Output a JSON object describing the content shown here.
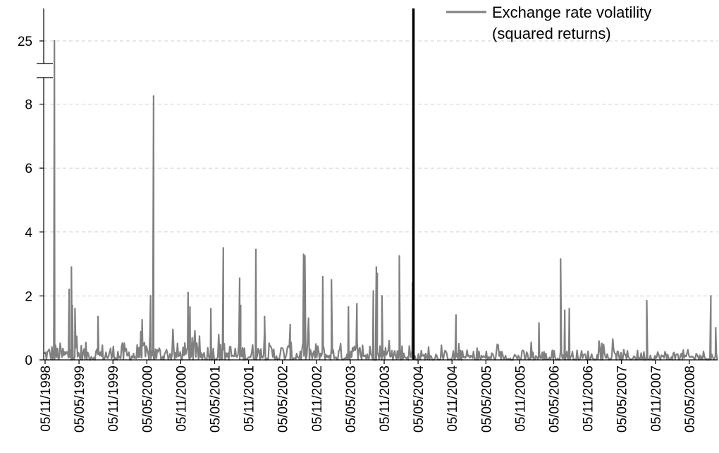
{
  "chart_data": {
    "type": "line",
    "title": "",
    "xlabel": "",
    "ylabel": "",
    "legend": {
      "position": "top-right",
      "entries": [
        "Exchange rate volatility",
        "(squared returns)"
      ]
    },
    "grid": {
      "horizontal": true,
      "style": "dashed"
    },
    "ylim": [
      0,
      10
    ],
    "axis_break": {
      "between": [
        9,
        25
      ],
      "note": "y-axis broken above 9; top tick reads 25"
    },
    "y_ticks": [
      "0",
      "2",
      "4",
      "6",
      "8",
      "25"
    ],
    "x_ticks": [
      "05/11/1998",
      "05/05/1999",
      "05/11/1999",
      "05/05/2000",
      "05/11/2000",
      "05/05/2001",
      "05/11/2001",
      "05/05/2002",
      "05/11/2002",
      "05/05/2003",
      "05/11/2003",
      "05/05/2004",
      "05/11/2004",
      "05/05/2005",
      "05/11/2005",
      "05/05/2006",
      "05/11/2006",
      "05/05/2007",
      "05/11/2007",
      "05/05/2008"
    ],
    "xlim": [
      "1998-11-05",
      "2008-08-20"
    ],
    "vertical_marker": {
      "x": "2004-03-20",
      "color": "#000000"
    },
    "series": [
      {
        "name": "Exchange rate volatility (squared returns)",
        "color": "#808080",
        "peaks": [
          {
            "x": "1999-01-01",
            "y": 25
          },
          {
            "x": "1999-03-20",
            "y": 2.2
          },
          {
            "x": "1999-04-01",
            "y": 2.9
          },
          {
            "x": "1999-04-06",
            "y": 1.7
          },
          {
            "x": "1999-04-20",
            "y": 1.6
          },
          {
            "x": "1999-08-20",
            "y": 1.35
          },
          {
            "x": "2000-04-10",
            "y": 1.25
          },
          {
            "x": "2000-05-25",
            "y": 2.0
          },
          {
            "x": "2000-06-10",
            "y": 8.25
          },
          {
            "x": "2000-12-10",
            "y": 2.1
          },
          {
            "x": "2000-12-20",
            "y": 1.65
          },
          {
            "x": "2001-04-10",
            "y": 1.6
          },
          {
            "x": "2001-06-15",
            "y": 3.5
          },
          {
            "x": "2001-09-10",
            "y": 2.55
          },
          {
            "x": "2001-09-15",
            "y": 1.7
          },
          {
            "x": "2001-12-05",
            "y": 3.45
          },
          {
            "x": "2002-01-20",
            "y": 1.35
          },
          {
            "x": "2002-06-05",
            "y": 1.1
          },
          {
            "x": "2002-08-15",
            "y": 3.3
          },
          {
            "x": "2002-08-22",
            "y": 3.25
          },
          {
            "x": "2002-11-25",
            "y": 2.6
          },
          {
            "x": "2003-01-10",
            "y": 2.5
          },
          {
            "x": "2003-04-10",
            "y": 1.65
          },
          {
            "x": "2003-05-25",
            "y": 1.75
          },
          {
            "x": "2003-08-20",
            "y": 2.15
          },
          {
            "x": "2003-09-05",
            "y": 2.9
          },
          {
            "x": "2003-09-10",
            "y": 2.7
          },
          {
            "x": "2003-10-05",
            "y": 2.0
          },
          {
            "x": "2004-01-05",
            "y": 3.25
          },
          {
            "x": "2004-03-15",
            "y": 2.4
          },
          {
            "x": "2004-11-01",
            "y": 1.4
          },
          {
            "x": "2006-01-15",
            "y": 1.15
          },
          {
            "x": "2006-05-10",
            "y": 3.15
          },
          {
            "x": "2006-06-01",
            "y": 1.55
          },
          {
            "x": "2006-06-25",
            "y": 1.6
          },
          {
            "x": "2007-08-10",
            "y": 1.85
          },
          {
            "x": "2008-07-15",
            "y": 2.0
          },
          {
            "x": "2008-08-10",
            "y": 1.0
          }
        ]
      }
    ]
  }
}
